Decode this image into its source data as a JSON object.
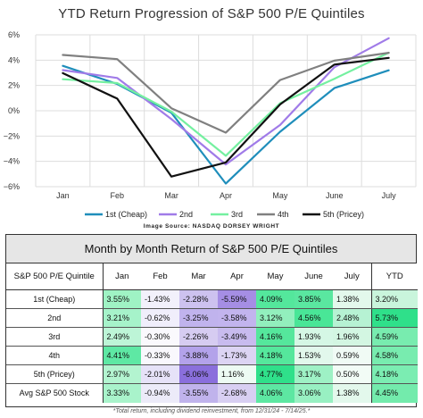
{
  "chart_data": {
    "type": "line",
    "title": "YTD Return Progression of S&P 500 P/E Quintiles",
    "source": "Image Source: NASDAQ DORSEY WRIGHT",
    "categories": [
      "Jan",
      "Feb",
      "Mar",
      "Apr",
      "May",
      "June",
      "July"
    ],
    "yticks": [
      "6%",
      "4%",
      "2%",
      "0%",
      "−2%",
      "−4%",
      "−6%"
    ],
    "ylim": [
      -6,
      6
    ],
    "grid": true,
    "legend_position": "bottom",
    "series": [
      {
        "name": "1st (Cheap)",
        "color": "#1f8ebb",
        "values": [
          3.55,
          2.12,
          -0.16,
          -5.75,
          -1.66,
          1.79,
          3.2
        ]
      },
      {
        "name": "2nd",
        "color": "#a07be8",
        "values": [
          3.21,
          2.59,
          -0.66,
          -4.24,
          -1.12,
          3.44,
          5.73
        ]
      },
      {
        "name": "3rd",
        "color": "#74f0a0",
        "values": [
          2.49,
          2.19,
          -0.07,
          -3.56,
          0.6,
          2.53,
          4.59
        ]
      },
      {
        "name": "4th",
        "color": "#808080",
        "values": [
          4.41,
          4.08,
          0.2,
          -1.73,
          2.43,
          3.96,
          4.58
        ]
      },
      {
        "name": "5th (Pricey)",
        "color": "#111111",
        "values": [
          2.97,
          0.96,
          -5.2,
          -4.09,
          0.5,
          3.65,
          4.18
        ]
      }
    ]
  },
  "table": {
    "title": "Month by Month Return of S&P 500 P/E Quintiles",
    "headers": [
      "S&P 500 P/E Quintile",
      "Jan",
      "Feb",
      "Mar",
      "Apr",
      "May",
      "June",
      "July",
      "YTD"
    ],
    "rows": [
      [
        "1st (Cheap)",
        "3.55%",
        "-1.43%",
        "-2.28%",
        "-5.59%",
        "4.09%",
        "3.85%",
        "1.38%",
        "3.20%"
      ],
      [
        "2nd",
        "3.21%",
        "-0.62%",
        "-3.25%",
        "-3.58%",
        "3.12%",
        "4.56%",
        "2.48%",
        "5.73%"
      ],
      [
        "3rd",
        "2.49%",
        "-0.30%",
        "-2.26%",
        "-3.49%",
        "4.16%",
        "1.93%",
        "1.96%",
        "4.59%"
      ],
      [
        "4th",
        "4.41%",
        "-0.33%",
        "-3.88%",
        "-1.73%",
        "4.18%",
        "1.53%",
        "0.59%",
        "4.58%"
      ],
      [
        "5th (Pricey)",
        "2.97%",
        "-2.01%",
        "-6.06%",
        "1.16%",
        "4.77%",
        "3.17%",
        "0.50%",
        "4.18%"
      ],
      [
        "Avg S&P 500 Stock",
        "3.33%",
        "-0.94%",
        "-3.55%",
        "-2.68%",
        "4.06%",
        "3.06%",
        "1.38%",
        "4.45%"
      ]
    ],
    "cell_colors": [
      [
        "#9ff3c4",
        "#f2f1fb",
        "#cdc2ef",
        "#a58ee4",
        "#54e79c",
        "#5ae7a0",
        "#e3f8ec",
        "#c9f5dc"
      ],
      [
        "#a6f3ca",
        "#f0eefb",
        "#c0b3ed",
        "#c2b4ee",
        "#92efbd",
        "#49e697",
        "#b6f2d3",
        "#2fe08a"
      ],
      [
        "#bdf5d7",
        "#faf9fd",
        "#d6ccf1",
        "#c8bbee",
        "#55e79c",
        "#d5f7e5",
        "#d3f6e2",
        "#78ecaf"
      ],
      [
        "#5ee8a4",
        "#f9f8fd",
        "#b3a2ea",
        "#dcd4f3",
        "#55e79c",
        "#e2f8ec",
        "#f0fbf5",
        "#78ecaf"
      ],
      [
        "#b3f4d0",
        "#e6e2f8",
        "#8a6fdc",
        "#edfbf3",
        "#2fe08a",
        "#9ef1c5",
        "#f2fcf6",
        "#7bedb2"
      ],
      [
        "#a9f3cb",
        "#ecebf9",
        "#c0b3ec",
        "#d8cff2",
        "#5de7a2",
        "#98f0c2",
        "#e3f8ec",
        "#73ebac"
      ]
    ]
  },
  "footnote": "*Total return, including dividend reinvestment, from 12/31/24 - 7/14/25.*"
}
